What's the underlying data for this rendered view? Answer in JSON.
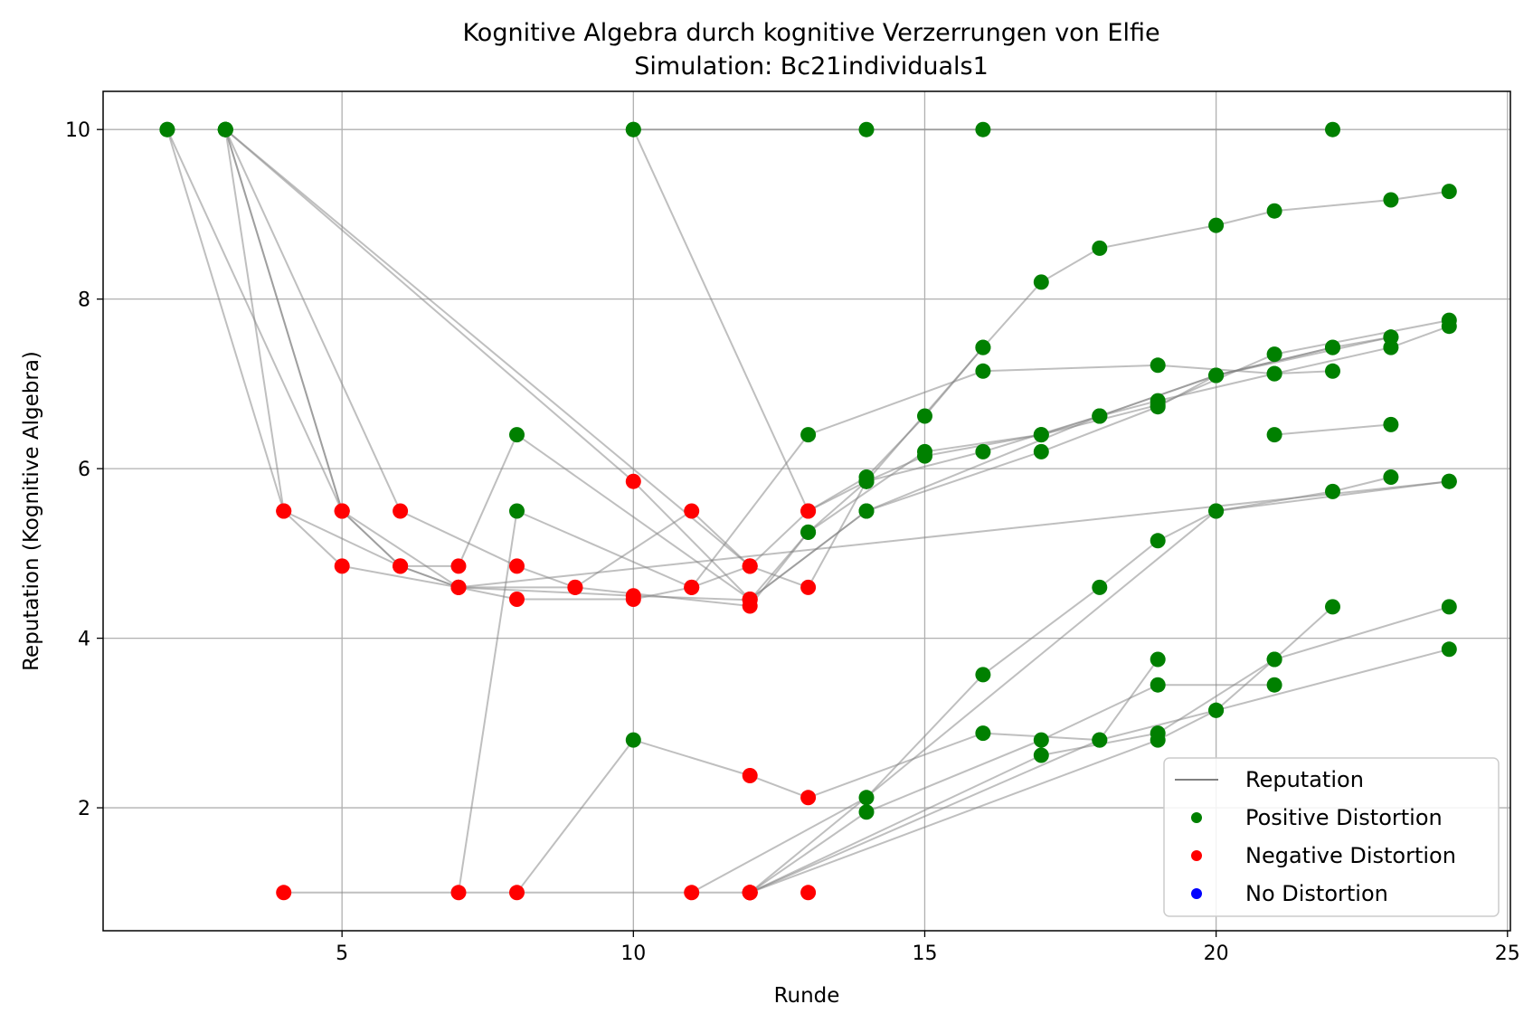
{
  "chart_data": {
    "type": "line",
    "title": "Kognitive Algebra durch kognitive Verzerrungen von Elfie",
    "subtitle": "Simulation: Bc21individuals1",
    "xlabel": "Runde",
    "ylabel": "Reputation (Kognitive Algebra)",
    "xlim": [
      0.9,
      25.05
    ],
    "ylim": [
      0.55,
      10.45
    ],
    "xticks": [
      5,
      10,
      15,
      20,
      25
    ],
    "yticks": [
      2,
      4,
      6,
      8,
      10
    ],
    "grid": true,
    "legend_position": "bottom-right",
    "legend": [
      {
        "label": "Reputation",
        "kind": "line",
        "color": "#808080"
      },
      {
        "label": "Positive Distortion",
        "kind": "dot",
        "color": "#008000"
      },
      {
        "label": "Negative Distortion",
        "kind": "dot",
        "color": "#ff0000"
      },
      {
        "label": "No Distortion",
        "kind": "dot",
        "color": "#0000ff"
      }
    ],
    "colors": {
      "positive": "#008000",
      "negative": "#ff0000",
      "neutral": "#0000ff",
      "line": "#808080"
    },
    "series": [
      {
        "points": [
          [
            3,
            10,
            "pos"
          ],
          [
            5,
            5.5,
            "neg"
          ],
          [
            6,
            4.85,
            "neg"
          ],
          [
            7,
            4.6,
            "neg"
          ],
          [
            10,
            4.5,
            "neg"
          ],
          [
            12,
            4.45,
            "neg"
          ],
          [
            13,
            5.25,
            "pos"
          ],
          [
            14,
            5.85,
            "pos"
          ],
          [
            15,
            6.15,
            "pos"
          ],
          [
            17,
            6.4,
            "pos"
          ],
          [
            19,
            6.75,
            "pos"
          ],
          [
            21,
            7.35,
            "pos"
          ],
          [
            24,
            7.75,
            "pos"
          ]
        ]
      },
      {
        "points": [
          [
            3,
            10,
            "pos"
          ],
          [
            6,
            5.5,
            "neg"
          ],
          [
            8,
            4.85,
            "neg"
          ],
          [
            9,
            4.6,
            "neg"
          ],
          [
            12,
            4.38,
            "neg"
          ],
          [
            13,
            5.25,
            "pos"
          ],
          [
            15,
            6.2,
            "pos"
          ],
          [
            17,
            6.4,
            "pos"
          ],
          [
            18,
            6.62,
            "pos"
          ],
          [
            20,
            7.1,
            "pos"
          ],
          [
            22,
            7.43,
            "pos"
          ],
          [
            23,
            7.55,
            "pos"
          ]
        ]
      },
      {
        "points": [
          [
            3,
            10,
            "pos"
          ],
          [
            5,
            5.5,
            "neg"
          ],
          [
            7,
            4.6,
            "neg"
          ],
          [
            8,
            4.46,
            "neg"
          ],
          [
            10,
            4.46,
            "neg"
          ],
          [
            11,
            4.6,
            "neg"
          ],
          [
            12,
            4.85,
            "neg"
          ],
          [
            13,
            5.5,
            "neg"
          ],
          [
            14,
            5.9,
            "pos"
          ],
          [
            15,
            6.62,
            "pos"
          ],
          [
            16,
            7.43,
            "pos"
          ],
          [
            17,
            8.2,
            "pos"
          ],
          [
            18,
            8.6,
            "pos"
          ],
          [
            20,
            8.87,
            "pos"
          ],
          [
            21,
            9.04,
            "pos"
          ],
          [
            23,
            9.17,
            "pos"
          ],
          [
            24,
            9.27,
            "pos"
          ]
        ]
      },
      {
        "points": [
          [
            2,
            10,
            "pos"
          ],
          [
            4,
            5.5,
            "neg"
          ],
          [
            5,
            4.85,
            "neg"
          ],
          [
            7,
            4.6,
            "neg"
          ],
          [
            24,
            5.85,
            "pos"
          ]
        ]
      },
      {
        "points": [
          [
            2,
            10,
            "pos"
          ],
          [
            5,
            5.5,
            "neg"
          ],
          [
            6,
            4.85,
            "neg"
          ],
          [
            7,
            4.6,
            "neg"
          ],
          [
            9,
            4.6,
            "neg"
          ],
          [
            11,
            5.5,
            "neg"
          ],
          [
            12,
            4.85,
            "neg"
          ],
          [
            13,
            4.6,
            "neg"
          ],
          [
            14,
            5.85,
            "pos"
          ],
          [
            16,
            7.43,
            "pos"
          ]
        ]
      },
      {
        "points": [
          [
            3,
            10,
            "pos"
          ],
          [
            4,
            5.5,
            "neg"
          ],
          [
            6,
            4.85,
            "neg"
          ],
          [
            7,
            4.85,
            "neg"
          ],
          [
            8,
            6.4,
            "pos"
          ],
          [
            12,
            4.46,
            "neg"
          ],
          [
            14,
            5.5,
            "pos"
          ],
          [
            18,
            6.62,
            "pos"
          ],
          [
            20,
            7.1,
            "pos"
          ],
          [
            22,
            7.43,
            "pos"
          ]
        ]
      },
      {
        "points": [
          [
            3,
            10,
            "pos"
          ],
          [
            10,
            5.85,
            "neg"
          ],
          [
            12,
            4.46,
            "neg"
          ],
          [
            14,
            5.5,
            "pos"
          ],
          [
            17,
            6.2,
            "pos"
          ],
          [
            19,
            6.73,
            "pos"
          ],
          [
            20,
            7.1,
            "pos"
          ],
          [
            23,
            7.55,
            "pos"
          ]
        ]
      },
      {
        "points": [
          [
            10,
            10,
            "pos"
          ],
          [
            13,
            5.5,
            "neg"
          ],
          [
            14,
            5.85,
            "pos"
          ],
          [
            16,
            6.2,
            "pos"
          ],
          [
            18,
            6.62,
            "pos"
          ],
          [
            19,
            6.8,
            "pos"
          ],
          [
            21,
            7.12,
            "pos"
          ],
          [
            22,
            7.15,
            "pos"
          ]
        ]
      },
      {
        "points": [
          [
            10,
            10,
            "pos"
          ],
          [
            22,
            10,
            "pos"
          ]
        ]
      },
      {
        "points": [
          [
            4,
            1,
            "neg"
          ],
          [
            12,
            1,
            "neg"
          ]
        ]
      },
      {
        "points": [
          [
            7,
            1,
            "neg"
          ],
          [
            8,
            5.5,
            "pos"
          ],
          [
            11,
            4.6,
            "neg"
          ],
          [
            13,
            6.4,
            "pos"
          ],
          [
            16,
            7.15,
            "pos"
          ],
          [
            19,
            7.22,
            "pos"
          ],
          [
            21,
            7.12,
            "pos"
          ],
          [
            23,
            7.43,
            "pos"
          ],
          [
            24,
            7.68,
            "pos"
          ]
        ]
      },
      {
        "points": [
          [
            8,
            1,
            "neg"
          ],
          [
            10,
            2.8,
            "pos"
          ],
          [
            12,
            2.38,
            "neg"
          ],
          [
            13,
            2.12,
            "neg"
          ],
          [
            16,
            2.88,
            "pos"
          ],
          [
            18,
            2.8,
            "pos"
          ],
          [
            20,
            3.15,
            "pos"
          ],
          [
            21,
            3.75,
            "pos"
          ],
          [
            24,
            4.37,
            "pos"
          ]
        ]
      },
      {
        "points": [
          [
            11,
            1,
            "neg"
          ],
          [
            14,
            2.12,
            "pos"
          ],
          [
            16,
            3.57,
            "pos"
          ],
          [
            18,
            4.6,
            "pos"
          ],
          [
            19,
            5.15,
            "pos"
          ],
          [
            20,
            5.5,
            "pos"
          ],
          [
            22,
            5.73,
            "pos"
          ],
          [
            23,
            5.9,
            "pos"
          ]
        ]
      },
      {
        "points": [
          [
            12,
            1,
            "neg"
          ],
          [
            14,
            1.95,
            "pos"
          ],
          [
            17,
            2.8,
            "pos"
          ],
          [
            19,
            3.45,
            "pos"
          ],
          [
            21,
            3.45,
            "pos"
          ]
        ]
      },
      {
        "points": [
          [
            12,
            1,
            "neg"
          ],
          [
            17,
            2.62,
            "pos"
          ],
          [
            19,
            2.88,
            "pos"
          ],
          [
            21,
            3.75,
            "pos"
          ],
          [
            22,
            4.37,
            "pos"
          ]
        ]
      },
      {
        "points": [
          [
            12,
            1,
            "neg"
          ],
          [
            18,
            2.8,
            "pos"
          ],
          [
            19,
            3.75,
            "pos"
          ]
        ]
      },
      {
        "points": [
          [
            12,
            1,
            "neg"
          ],
          [
            19,
            2.8,
            "pos"
          ],
          [
            20,
            3.15,
            "pos"
          ],
          [
            24,
            3.87,
            "pos"
          ]
        ]
      },
      {
        "points": [
          [
            12,
            1,
            "neg"
          ],
          [
            20,
            5.5,
            "pos"
          ],
          [
            24,
            5.85,
            "pos"
          ]
        ]
      },
      {
        "points": [
          [
            13,
            1,
            "neg"
          ]
        ]
      },
      {
        "points": [
          [
            14,
            10,
            "pos"
          ]
        ]
      },
      {
        "points": [
          [
            16,
            10,
            "pos"
          ]
        ]
      },
      {
        "points": [
          [
            21,
            6.4,
            "pos"
          ],
          [
            23,
            6.52,
            "pos"
          ]
        ]
      },
      {
        "points": [
          [
            3,
            10,
            "pos"
          ],
          [
            12,
            4.85,
            "neg"
          ]
        ]
      }
    ]
  }
}
